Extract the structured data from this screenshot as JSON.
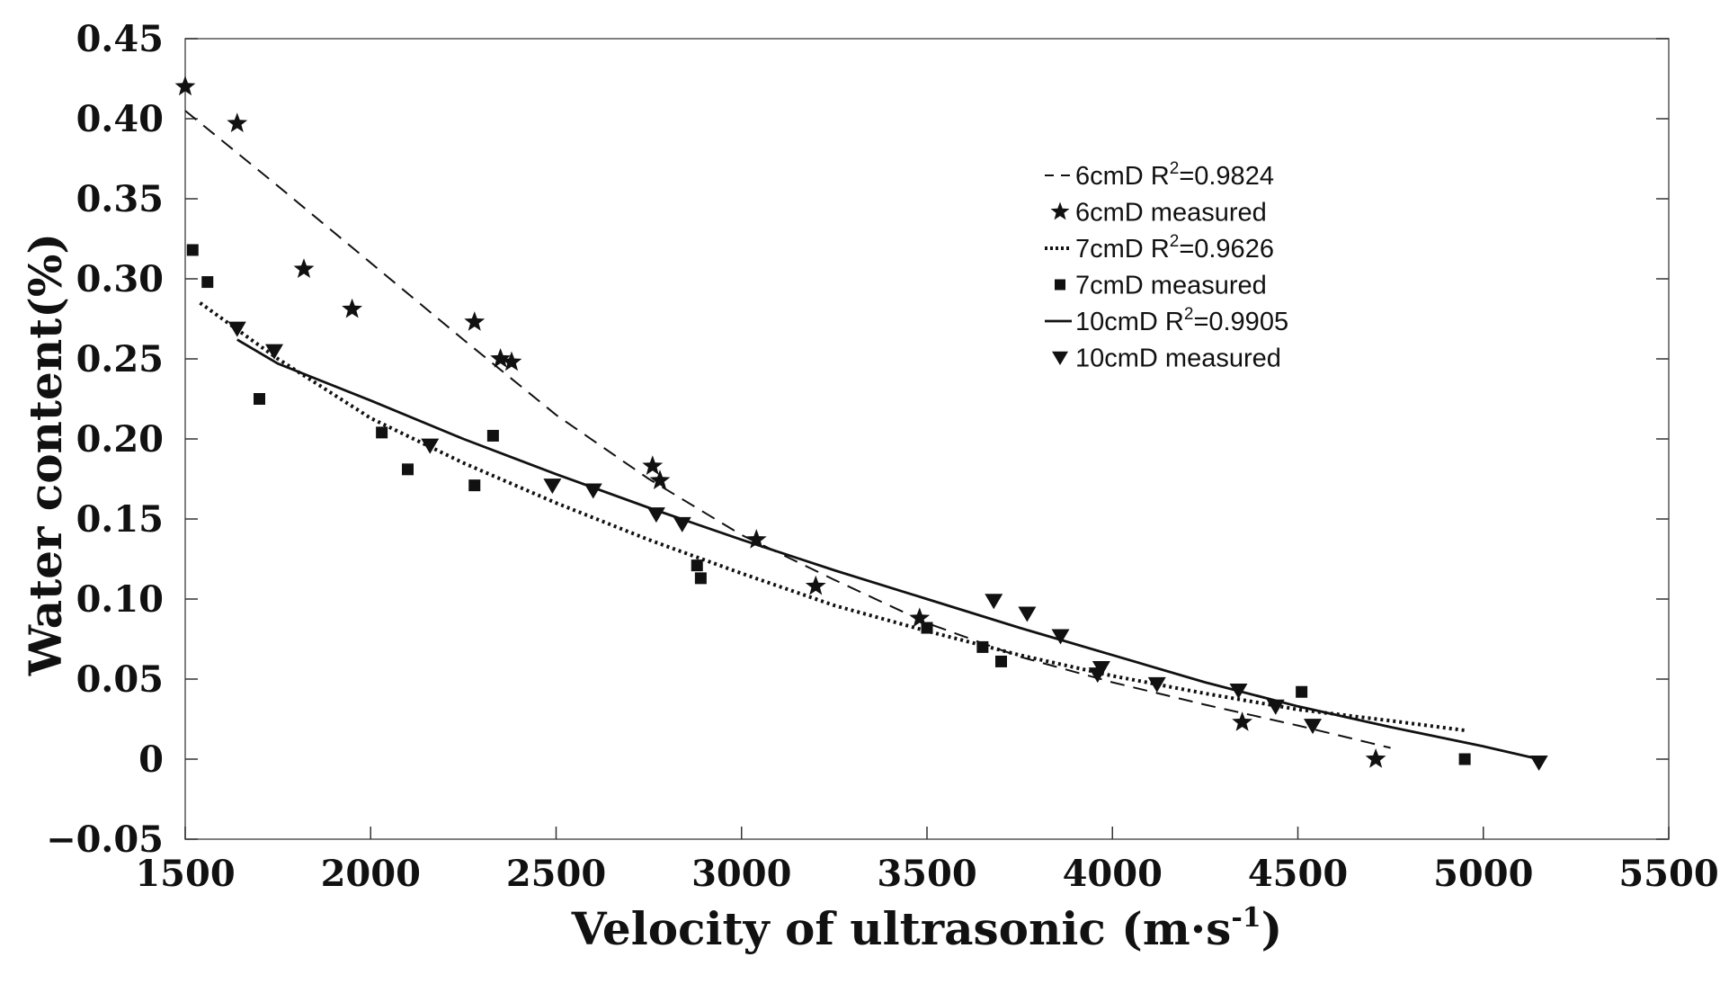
{
  "chart_data": {
    "type": "scatter",
    "title": "",
    "xlabel": "Velocity of ultrasonic (m·s",
    "xlabel_sup": "-1",
    "xlabel_end": ")",
    "ylabel": "Water content(%)",
    "xlim": [
      1500,
      5500
    ],
    "ylim": [
      -0.05,
      0.45
    ],
    "x_ticks": [
      1500,
      2000,
      2500,
      3000,
      3500,
      4000,
      4500,
      5000,
      5500
    ],
    "x_tick_labels": [
      "1500",
      "2000",
      "2500",
      "3000",
      "3500",
      "4000",
      "4500",
      "5000",
      "5500"
    ],
    "y_ticks": [
      -0.05,
      0,
      0.05,
      0.1,
      0.15,
      0.2,
      0.25,
      0.3,
      0.35,
      0.4,
      0.45
    ],
    "y_tick_labels": [
      "−0.05",
      "0",
      "0.05",
      "0.10",
      "0.15",
      "0.20",
      "0.25",
      "0.30",
      "0.35",
      "0.40",
      "0.45"
    ],
    "grid": false,
    "legend_position": "top-right",
    "fits": [
      {
        "name": "6cmD",
        "label": "6cmD R",
        "sup": "2",
        "r2_text": "=0.9824",
        "style": "dashed",
        "x": [
          1500,
          1750,
          2000,
          2250,
          2500,
          2750,
          3000,
          3250,
          3500,
          3750,
          4000,
          4250,
          4500,
          4750
        ],
        "y": [
          0.405,
          0.358,
          0.31,
          0.262,
          0.215,
          0.175,
          0.14,
          0.112,
          0.085,
          0.064,
          0.048,
          0.034,
          0.021,
          0.007
        ]
      },
      {
        "name": "7cmD",
        "label": "7cmD R",
        "sup": "2",
        "r2_text": "=0.9626",
        "style": "dotted",
        "x": [
          1540,
          1750,
          2000,
          2250,
          2500,
          2750,
          3000,
          3250,
          3500,
          3750,
          4000,
          4250,
          4500,
          4750,
          4950
        ],
        "y": [
          0.285,
          0.25,
          0.213,
          0.185,
          0.16,
          0.137,
          0.116,
          0.096,
          0.08,
          0.065,
          0.052,
          0.041,
          0.031,
          0.024,
          0.018
        ]
      },
      {
        "name": "10cmD",
        "label": "10cmD R",
        "sup": "2",
        "r2_text": "=0.9905",
        "style": "solid",
        "x": [
          1640,
          1750,
          2000,
          2250,
          2500,
          2750,
          3000,
          3250,
          3500,
          3750,
          4000,
          4250,
          4500,
          4750,
          5000,
          5150
        ],
        "y": [
          0.262,
          0.247,
          0.224,
          0.2,
          0.178,
          0.157,
          0.137,
          0.118,
          0.1,
          0.082,
          0.065,
          0.048,
          0.033,
          0.02,
          0.008,
          0.0
        ]
      }
    ],
    "series": [
      {
        "name": "6cmD measured",
        "marker": "star",
        "x": [
          1500,
          1640,
          1820,
          1950,
          2280,
          2350,
          2380,
          2760,
          2780,
          3040,
          3200,
          3480,
          4350,
          4710
        ],
        "y": [
          0.42,
          0.397,
          0.306,
          0.281,
          0.273,
          0.25,
          0.248,
          0.183,
          0.174,
          0.137,
          0.108,
          0.088,
          0.023,
          0.0
        ]
      },
      {
        "name": "7cmD measured",
        "marker": "square",
        "x": [
          1520,
          1560,
          1700,
          2030,
          2100,
          2280,
          2330,
          2880,
          2890,
          3500,
          3650,
          3700,
          4510,
          4950
        ],
        "y": [
          0.318,
          0.298,
          0.225,
          0.204,
          0.181,
          0.171,
          0.202,
          0.121,
          0.113,
          0.082,
          0.07,
          0.061,
          0.042,
          0.0
        ]
      },
      {
        "name": "10cmD measured",
        "marker": "triangle-down",
        "x": [
          1640,
          1740,
          2160,
          2490,
          2600,
          2770,
          2840,
          3680,
          3770,
          3860,
          3960,
          3970,
          4120,
          4340,
          4440,
          4540,
          5150
        ],
        "y": [
          0.269,
          0.255,
          0.196,
          0.171,
          0.168,
          0.153,
          0.147,
          0.099,
          0.091,
          0.077,
          0.053,
          0.057,
          0.047,
          0.043,
          0.033,
          0.021,
          -0.002
        ]
      }
    ]
  }
}
